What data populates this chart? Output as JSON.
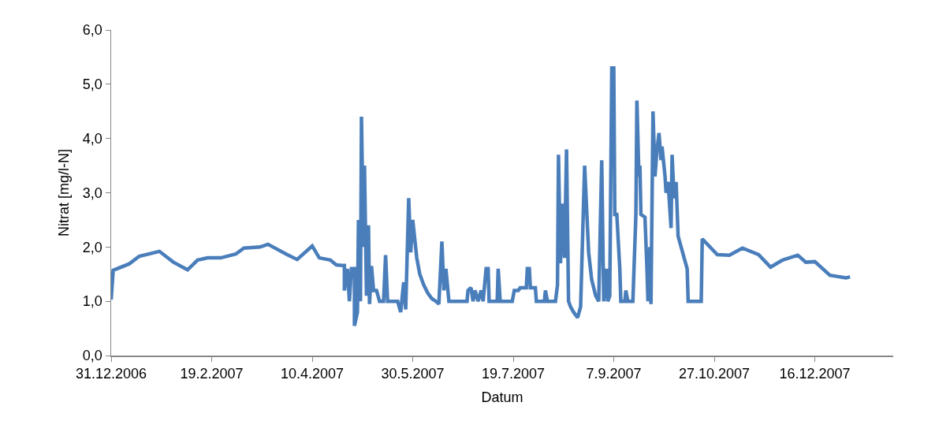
{
  "chart_data": {
    "type": "line",
    "xlabel": "Datum",
    "ylabel": "Nitrat [mg/l-N]",
    "x": [
      "2006-12-31",
      "2007-01-01",
      "2007-01-09",
      "2007-01-14",
      "2007-01-24",
      "2007-01-31",
      "2007-02-07",
      "2007-02-12",
      "2007-02-17",
      "2007-02-23T12:00",
      "2007-03-03",
      "2007-03-07",
      "2007-03-15",
      "2007-03-19",
      "2007-03-28",
      "2007-04-02T12:00",
      "2007-04-10",
      "2007-04-13T12:00",
      "2007-04-19",
      "2007-04-22",
      "2007-04-25",
      "2007-04-26",
      "2007-04-26",
      "2007-04-27T12:00",
      "2007-04-28T12:00",
      "2007-04-29T12:00",
      "2007-05-01",
      "2007-05-01",
      "2007-05-02T12:00",
      "2007-05-03",
      "2007-05-04",
      "2007-05-04T12:00",
      "2007-05-05T12:00",
      "2007-05-06",
      "2007-05-07",
      "2007-05-08",
      "2007-05-08T12:00",
      "2007-05-09T12:00",
      "2007-05-10T12:00",
      "2007-05-12",
      "2007-05-13T12:00",
      "2007-05-15T12:00",
      "2007-05-16T12:00",
      "2007-05-17T12:00",
      "2007-05-22T12:00",
      "2007-05-24",
      "2007-05-25T12:00",
      "2007-05-26T12:00",
      "2007-05-28",
      "2007-05-29",
      "2007-05-30",
      "2007-06-01",
      "2007-06-02T12:00",
      "2007-06-04T12:00",
      "2007-06-06T12:00",
      "2007-06-08T12:00",
      "2007-06-10T12:00",
      "2007-06-12",
      "2007-06-13T12:00",
      "2007-06-14T12:00",
      "2007-06-15T12:00",
      "2007-06-17",
      "2007-06-26",
      "2007-06-26T12:00",
      "2007-06-28",
      "2007-06-29",
      "2007-06-30",
      "2007-07-01T12:00",
      "2007-07-03",
      "2007-07-04",
      "2007-07-05T12:00",
      "2007-07-06T12:00",
      "2007-07-07",
      "2007-07-11",
      "2007-07-11T12:00",
      "2007-07-12T12:00",
      "2007-07-18T12:00",
      "2007-07-19T12:00",
      "2007-07-21T12:00",
      "2007-07-22T12:00",
      "2007-07-25T12:00",
      "2007-07-26",
      "2007-07-27",
      "2007-07-27T12:00",
      "2007-07-30",
      "2007-07-30T12:00",
      "2007-08-03T12:00",
      "2007-08-04",
      "2007-08-05",
      "2007-08-09",
      "2007-08-10",
      "2007-08-10T12:00",
      "2007-08-11T12:00",
      "2007-08-12T12:00",
      "2007-08-13T12:00",
      "2007-08-14T12:00",
      "2007-08-15T12:00",
      "2007-08-16T12:00",
      "2007-08-18",
      "2007-08-20",
      "2007-08-21T12:00",
      "2007-08-23T12:00",
      "2007-08-25T12:00",
      "2007-08-27",
      "2007-08-29",
      "2007-08-30T12:00",
      "2007-09-01",
      "2007-09-02",
      "2007-09-03T12:00",
      "2007-09-04",
      "2007-09-05",
      "2007-09-06",
      "2007-09-07",
      "2007-09-07T12:00",
      "2007-09-08T12:00",
      "2007-09-10",
      "2007-09-10T12:00",
      "2007-09-12T12:00",
      "2007-09-13",
      "2007-09-14",
      "2007-09-16T12:00",
      "2007-09-18",
      "2007-09-18T12:00",
      "2007-09-19T12:00",
      "2007-09-20",
      "2007-09-20T12:00",
      "2007-09-22T12:00",
      "2007-09-23T12:00",
      "2007-09-24",
      "2007-09-25",
      "2007-09-25T12:00",
      "2007-09-26T12:00",
      "2007-09-27T12:00",
      "2007-09-28T12:00",
      "2007-09-29T12:00",
      "2007-09-30T12:00",
      "2007-10-01",
      "2007-10-02T12:00",
      "2007-10-03",
      "2007-10-04",
      "2007-10-05T12:00",
      "2007-10-06",
      "2007-10-07",
      "2007-10-08",
      "2007-10-09",
      "2007-10-13T12:00",
      "2007-10-14",
      "2007-10-20T12:00",
      "2007-10-21",
      "2007-10-28T12:00",
      "2007-11-03T12:00",
      "2007-11-10",
      "2007-11-18",
      "2007-11-24",
      "2007-11-30",
      "2007-12-07T12:00",
      "2007-12-11T12:00",
      "2007-12-16",
      "2007-12-23T12:00",
      "2007-12-31T12:00",
      "2008-01-02T12:00"
    ],
    "values": [
      1.03,
      1.57,
      1.69,
      1.83,
      1.92,
      1.72,
      1.58,
      1.76,
      1.8,
      1.8,
      1.87,
      1.98,
      2.0,
      2.05,
      1.87,
      1.77,
      2.02,
      1.8,
      1.76,
      1.67,
      1.66,
      1.66,
      1.2,
      1.6,
      1.0,
      1.6,
      1.6,
      0.55,
      0.8,
      2.5,
      1.0,
      4.4,
      2.0,
      3.5,
      1.1,
      2.4,
      0.95,
      1.65,
      1.2,
      1.2,
      1.0,
      1.0,
      1.85,
      1.0,
      1.0,
      0.8,
      1.35,
      0.85,
      2.9,
      1.9,
      2.5,
      1.8,
      1.5,
      1.3,
      1.15,
      1.05,
      1.0,
      0.95,
      2.1,
      1.2,
      1.6,
      1.0,
      1.0,
      1.2,
      1.25,
      1.0,
      1.2,
      1.0,
      1.2,
      1.0,
      1.6,
      1.6,
      1.0,
      1.0,
      1.6,
      1.0,
      1.0,
      1.2,
      1.2,
      1.25,
      1.25,
      1.6,
      1.6,
      1.25,
      1.25,
      1.0,
      1.0,
      1.2,
      1.0,
      1.0,
      1.3,
      3.7,
      1.7,
      2.8,
      1.8,
      3.8,
      1.0,
      0.9,
      0.8,
      0.7,
      0.9,
      3.5,
      1.9,
      1.4,
      1.1,
      1.0,
      3.6,
      1.0,
      1.6,
      1.0,
      1.1,
      5.3,
      5.3,
      2.6,
      2.6,
      1.6,
      1.0,
      1.0,
      1.2,
      1.0,
      1.0,
      2.6,
      4.7,
      3.3,
      3.5,
      2.6,
      2.55,
      1.6,
      1.0,
      2.0,
      0.95,
      4.5,
      3.3,
      3.8,
      4.1,
      3.6,
      3.85,
      3.3,
      3.0,
      3.2,
      2.35,
      3.7,
      2.9,
      3.2,
      2.2,
      1.6,
      1.0,
      1.0,
      2.15,
      1.86,
      1.85,
      1.98,
      1.86,
      1.63,
      1.76,
      1.85,
      1.72,
      1.73,
      1.48,
      1.43,
      1.45
    ],
    "color": "#4a7ebb",
    "xlim": [
      "2006-12-31",
      "2008-01-24"
    ],
    "xticks": [
      {
        "value": "2006-12-31",
        "label": "31.12.2006"
      },
      {
        "value": "2007-02-19",
        "label": "19.2.2007"
      },
      {
        "value": "2007-04-10",
        "label": "10.4.2007"
      },
      {
        "value": "2007-05-30",
        "label": "30.5.2007"
      },
      {
        "value": "2007-07-19",
        "label": "19.7.2007"
      },
      {
        "value": "2007-09-07",
        "label": "7.9.2007"
      },
      {
        "value": "2007-10-27",
        "label": "27.10.2007"
      },
      {
        "value": "2007-12-16",
        "label": "16.12.2007"
      }
    ],
    "ylim": [
      0,
      6
    ],
    "yticks": [
      {
        "value": 0,
        "label": "0,0"
      },
      {
        "value": 1,
        "label": "1,0"
      },
      {
        "value": 2,
        "label": "2,0"
      },
      {
        "value": 3,
        "label": "3,0"
      },
      {
        "value": 4,
        "label": "4,0"
      },
      {
        "value": 5,
        "label": "5,0"
      },
      {
        "value": 6,
        "label": "6,0"
      }
    ],
    "marker": "none",
    "line_style": "solid"
  }
}
